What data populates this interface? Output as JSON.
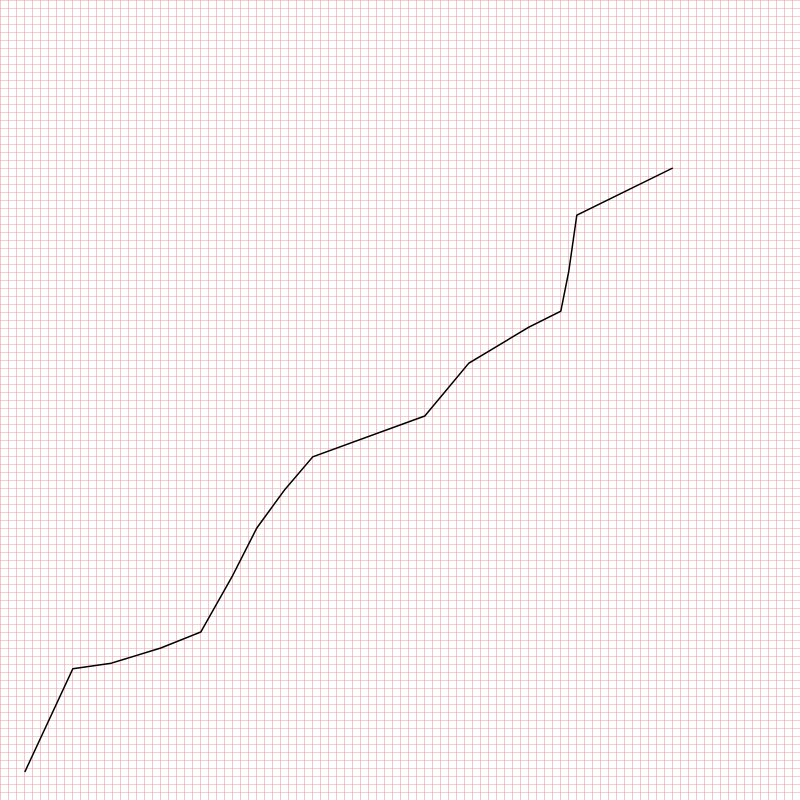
{
  "chart_data": {
    "type": "line",
    "title": "",
    "xlabel": "",
    "ylabel": "",
    "grid": true,
    "legend": "none",
    "xlim": [
      0,
      100
    ],
    "ylim": [
      0,
      100
    ],
    "colors": {
      "background": "#ffffff",
      "grid": "#e8a3a6",
      "line": "#000000"
    },
    "series": [
      {
        "x": [
          3.1,
          9.1,
          13.9,
          20.1,
          25.1,
          29.0,
          32.1,
          35.6,
          39.1,
          53.1,
          58.6,
          66.1,
          70.1,
          71.1,
          72.1,
          84.1
        ],
        "y": [
          3.5,
          16.4,
          17.1,
          19.0,
          21.0,
          27.9,
          34.0,
          38.8,
          42.9,
          48.0,
          54.6,
          59.1,
          61.1,
          66.1,
          73.1,
          79.0
        ]
      }
    ]
  }
}
